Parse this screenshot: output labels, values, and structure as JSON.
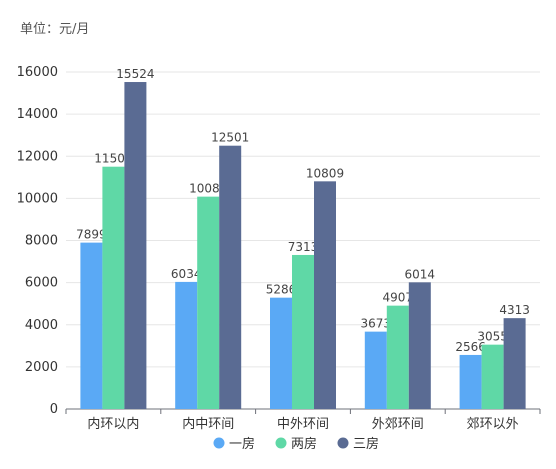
{
  "unit_label": "单位：元/月",
  "chart_data": {
    "type": "bar",
    "ylabel": "单位：元/月",
    "ylim": [
      0,
      16000
    ],
    "yticks": [
      0,
      2000,
      4000,
      6000,
      8000,
      10000,
      12000,
      14000,
      16000
    ],
    "grid": true,
    "legend_position": "bottom",
    "categories": [
      "内环以内",
      "内中环间",
      "中外环间",
      "外郊环间",
      "郊环以外"
    ],
    "series": [
      {
        "name": "一房",
        "color": "#5aa9f5",
        "values": [
          7899,
          6034,
          5286,
          3673,
          2566
        ]
      },
      {
        "name": "两房",
        "color": "#5fd8a6",
        "values": [
          11504,
          10082,
          7313,
          4907,
          3055
        ]
      },
      {
        "name": "三房",
        "color": "#5a6b93",
        "values": [
          15524,
          12501,
          10809,
          6014,
          4313
        ]
      }
    ]
  }
}
